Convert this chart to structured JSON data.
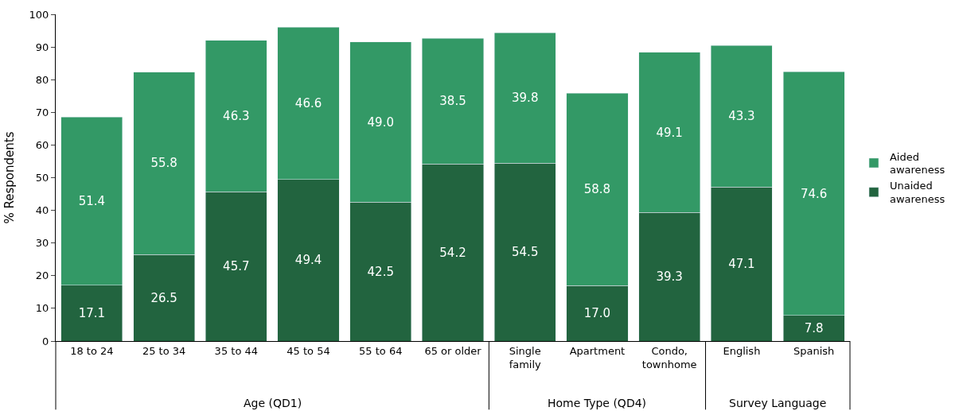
{
  "chart_data": {
    "type": "bar",
    "stacked": true,
    "ylabel": "% Respondents",
    "categories": [
      "18 to 24",
      "25 to 34",
      "35 to 44",
      "45 to 54",
      "55 to 64",
      "65 or older",
      "Single\nfamily",
      "Apartment",
      "Condo,\ntownhome",
      "English",
      "Spanish"
    ],
    "series": [
      {
        "name": "Unaided\nawareness",
        "color": "#22643f",
        "values": [
          17.1,
          26.5,
          45.7,
          49.4,
          42.5,
          54.2,
          54.5,
          17.0,
          39.3,
          47.1,
          7.8
        ],
        "value_labels": [
          "17.1",
          "26.5",
          "45.7",
          "49.4",
          "42.5",
          "54.2",
          "54.5",
          "17.0",
          "39.3",
          "47.1",
          "7.8"
        ]
      },
      {
        "name": "Aided\nawareness",
        "color": "#339966",
        "values": [
          51.4,
          55.8,
          46.3,
          46.6,
          49.0,
          38.5,
          39.8,
          58.8,
          49.1,
          43.3,
          74.6
        ],
        "value_labels": [
          "51.4",
          "55.8",
          "46.3",
          "46.6",
          "49.0",
          "38.5",
          "39.8",
          "58.8",
          "49.1",
          "43.3",
          "74.6"
        ]
      }
    ],
    "ylim": [
      0,
      100
    ],
    "yticks": [
      0,
      10,
      20,
      30,
      40,
      50,
      60,
      70,
      80,
      90,
      100
    ],
    "legend": "right",
    "annotations": [
      "Age (QD1)",
      "Home Type (QD4)",
      "Survey Language"
    ]
  }
}
